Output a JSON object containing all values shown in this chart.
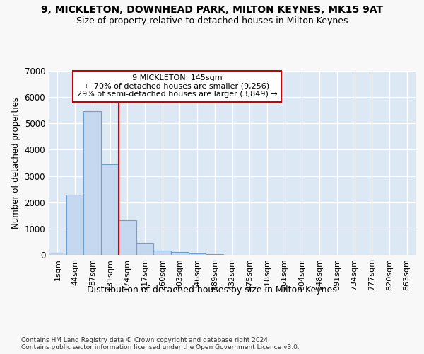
{
  "title_line1": "9, MICKLETON, DOWNHEAD PARK, MILTON KEYNES, MK15 9AT",
  "title_line2": "Size of property relative to detached houses in Milton Keynes",
  "xlabel": "Distribution of detached houses by size in Milton Keynes",
  "ylabel": "Number of detached properties",
  "footnote": "Contains HM Land Registry data © Crown copyright and database right 2024.\nContains public sector information licensed under the Open Government Licence v3.0.",
  "bar_labels": [
    "1sqm",
    "44sqm",
    "87sqm",
    "131sqm",
    "174sqm",
    "217sqm",
    "260sqm",
    "303sqm",
    "346sqm",
    "389sqm",
    "432sqm",
    "475sqm",
    "518sqm",
    "561sqm",
    "604sqm",
    "648sqm",
    "691sqm",
    "734sqm",
    "777sqm",
    "820sqm",
    "863sqm"
  ],
  "bar_values": [
    80,
    2280,
    5470,
    3450,
    1310,
    460,
    160,
    95,
    60,
    30,
    10,
    0,
    0,
    0,
    0,
    0,
    0,
    0,
    0,
    0,
    0
  ],
  "bar_color": "#c5d8f0",
  "bar_edge_color": "#6aa0cc",
  "annotation_text_line1": "9 MICKLETON: 145sqm",
  "annotation_text_line2": "← 70% of detached houses are smaller (9,256)",
  "annotation_text_line3": "29% of semi-detached houses are larger (3,849) →",
  "annotation_box_color": "#ffffff",
  "annotation_box_edge": "#cc0000",
  "vline_color": "#cc0000",
  "vline_bar_index": 3,
  "ylim": [
    0,
    7000
  ],
  "yticks": [
    0,
    1000,
    2000,
    3000,
    4000,
    5000,
    6000,
    7000
  ],
  "background_color": "#dde8f5",
  "grid_color": "#ffffff",
  "fig_background": "#f8f8f8"
}
